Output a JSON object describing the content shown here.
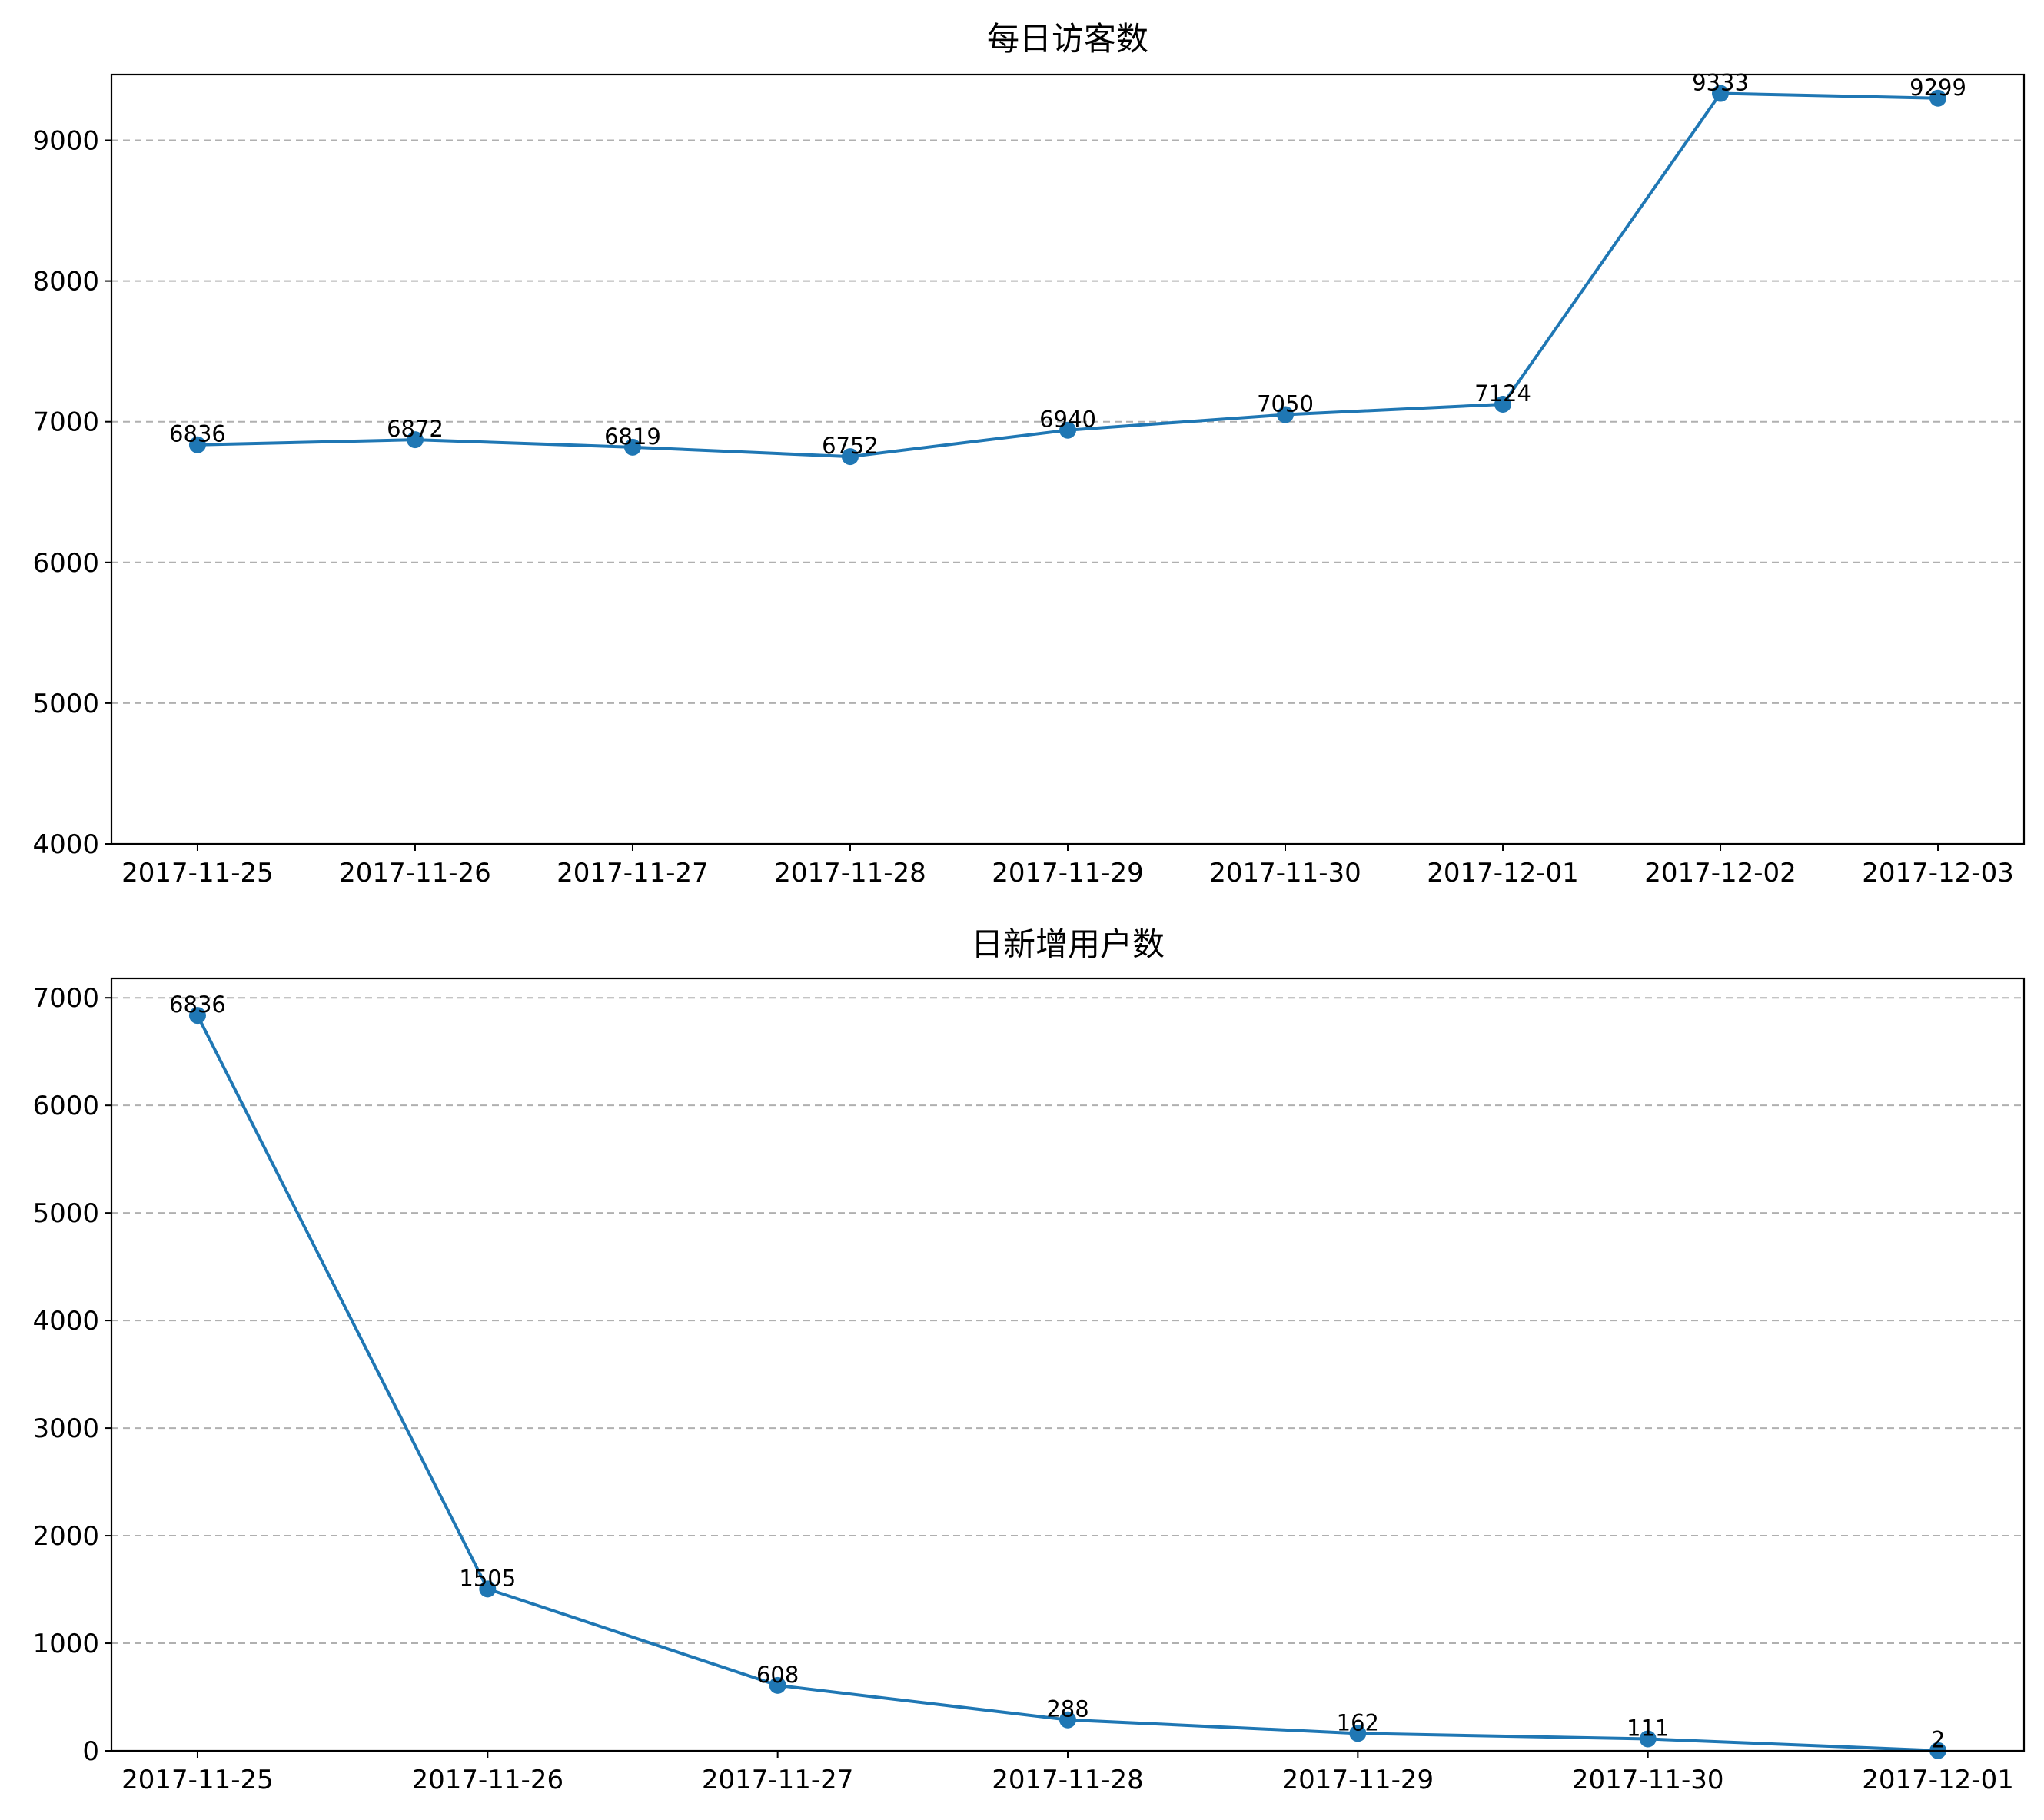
{
  "chart_data": [
    {
      "type": "line",
      "title": "每日访客数",
      "xlabel": "",
      "ylabel": "",
      "categories": [
        "2017-11-25",
        "2017-11-26",
        "2017-11-27",
        "2017-11-28",
        "2017-11-29",
        "2017-11-30",
        "2017-12-01",
        "2017-12-02",
        "2017-12-03"
      ],
      "series": [
        {
          "values": [
            6836,
            6872,
            6819,
            6752,
            6940,
            7050,
            7124,
            9333,
            9299
          ]
        }
      ],
      "ylim": [
        4000,
        9467
      ],
      "yticks": [
        4000,
        5000,
        6000,
        7000,
        8000,
        9000
      ],
      "grid": "y-dashed",
      "data_labels": true,
      "colors": {
        "series": "#1f77b4",
        "grid": "#b0b0b0"
      }
    },
    {
      "type": "line",
      "title": "日新增用户数",
      "xlabel": "",
      "ylabel": "",
      "categories": [
        "2017-11-25",
        "2017-11-26",
        "2017-11-27",
        "2017-11-28",
        "2017-11-29",
        "2017-11-30",
        "2017-12-01"
      ],
      "series": [
        {
          "values": [
            6836,
            1505,
            608,
            288,
            162,
            111,
            2
          ]
        }
      ],
      "ylim": [
        0,
        7180
      ],
      "yticks": [
        0,
        1000,
        2000,
        3000,
        4000,
        5000,
        6000,
        7000
      ],
      "grid": "y-dashed",
      "data_labels": true,
      "colors": {
        "series": "#1f77b4",
        "grid": "#b0b0b0"
      }
    }
  ]
}
